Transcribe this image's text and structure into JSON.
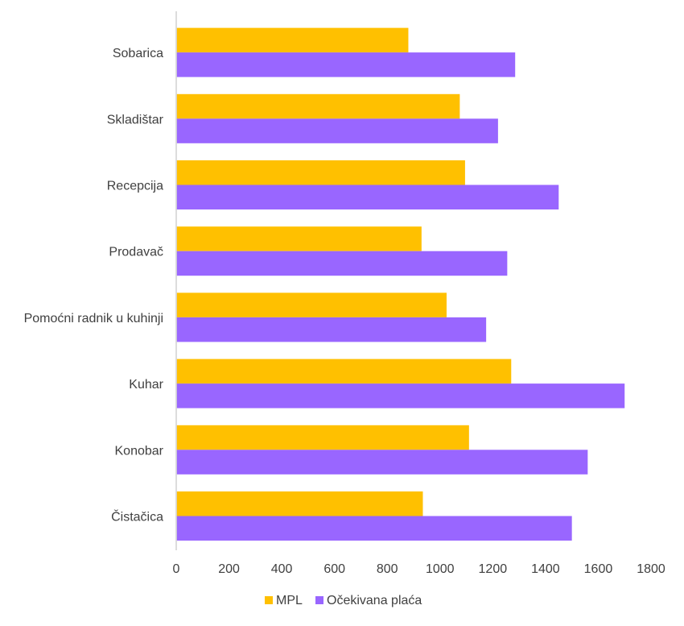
{
  "chart_data": {
    "type": "bar",
    "orientation": "horizontal",
    "title": "",
    "xlabel": "",
    "ylabel": "",
    "categories": [
      "Sobarica",
      "Skladištar",
      "Recepcija",
      "Prodavač",
      "Pomoćni radnik u kuhinji",
      "Kuhar",
      "Konobar",
      "Čistačica"
    ],
    "series": [
      {
        "name": "MPL",
        "color": "#FFC000",
        "values": [
          880,
          1075,
          1095,
          930,
          1025,
          1270,
          1110,
          935
        ]
      },
      {
        "name": "Očekivana plaća",
        "color": "#9966FF",
        "values": [
          1285,
          1220,
          1450,
          1255,
          1175,
          1700,
          1560,
          1500
        ]
      }
    ],
    "xlim": [
      0,
      1800
    ],
    "x_ticks": [
      "0",
      "200",
      "400",
      "600",
      "800",
      "1000",
      "1200",
      "1400",
      "1600",
      "1800"
    ],
    "grid": false,
    "legend_position": "bottom"
  }
}
